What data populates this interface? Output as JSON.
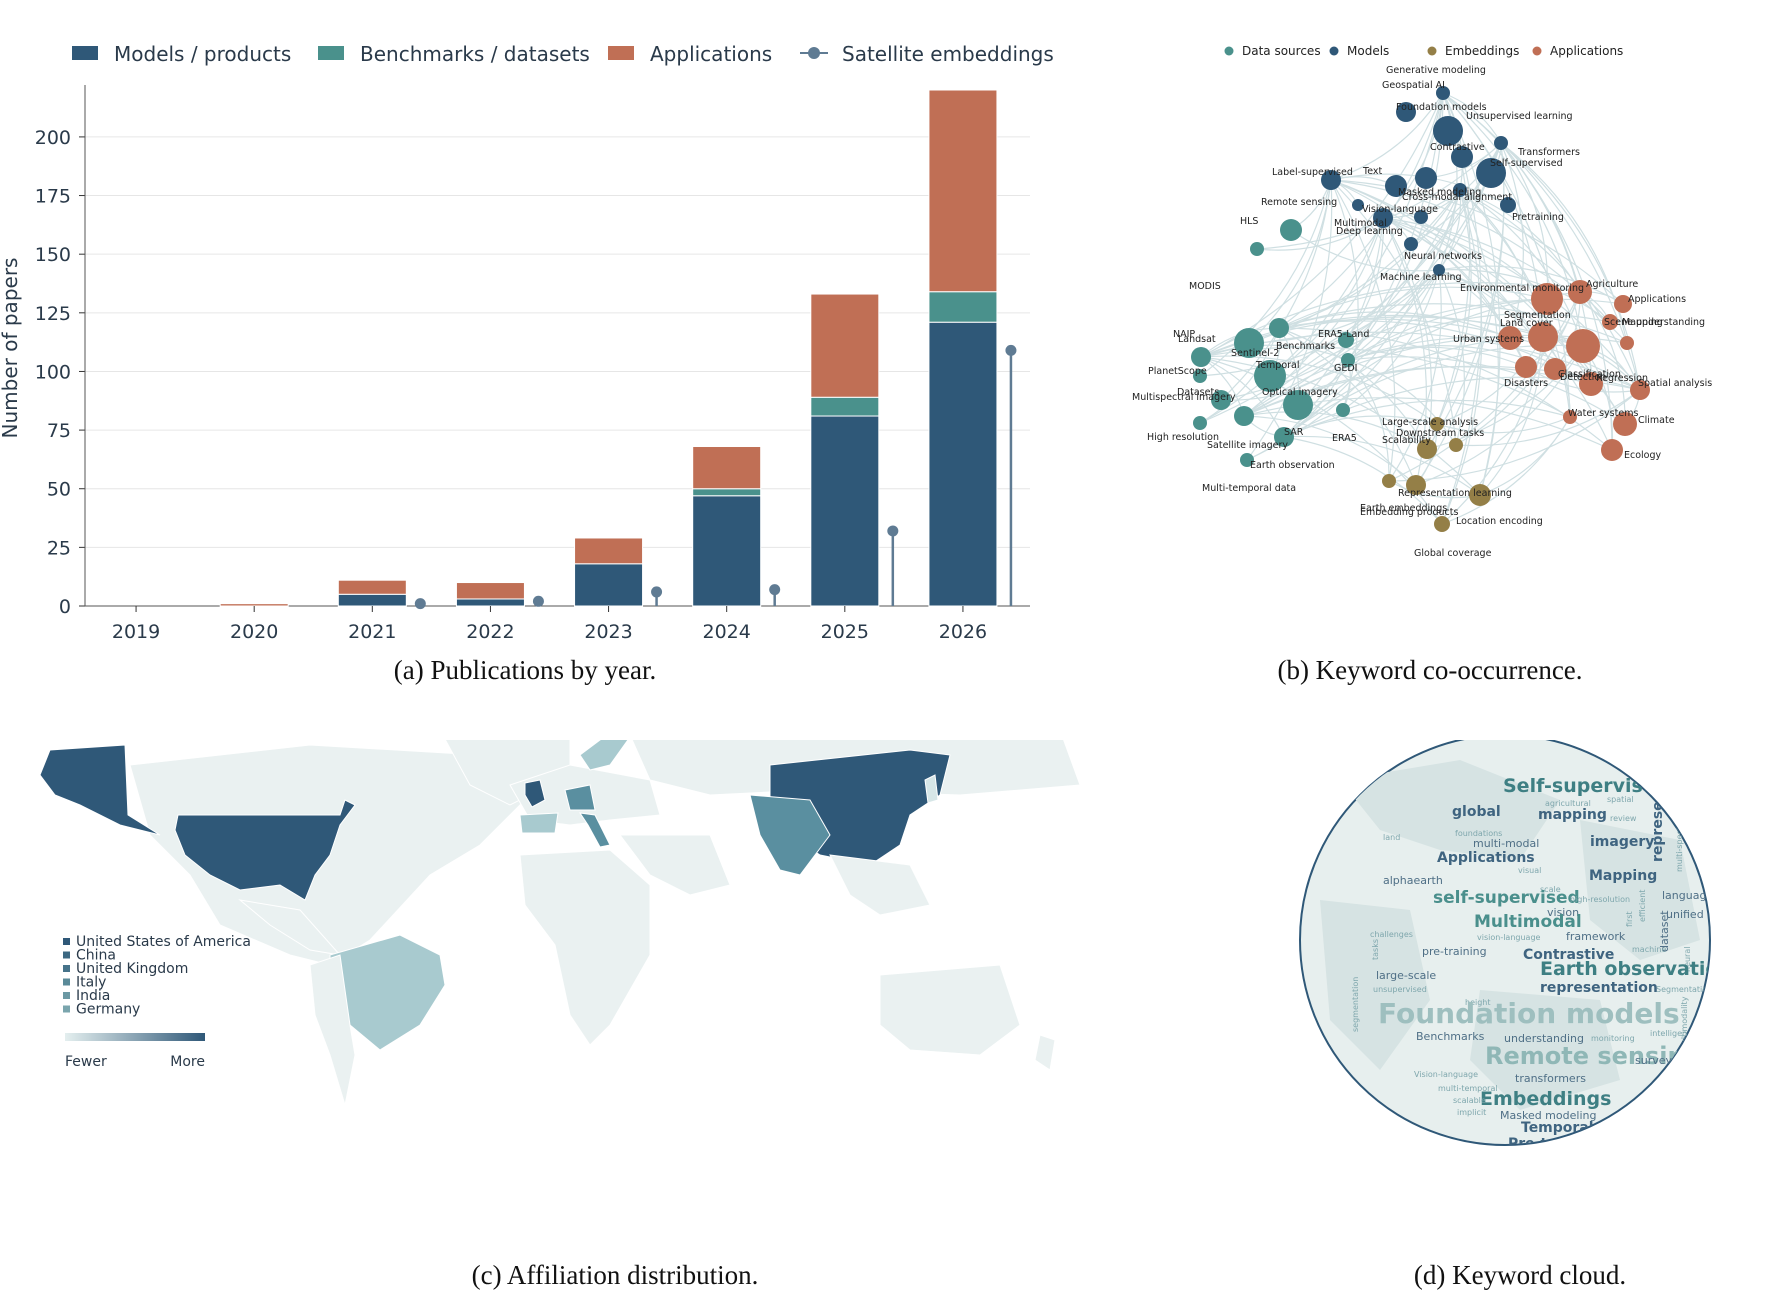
{
  "panels": {
    "a": {
      "caption": "(a) Publications by year."
    },
    "b": {
      "caption": "(b) Keyword co-occurrence."
    },
    "c": {
      "caption": "(c) Affiliation distribution."
    },
    "d": {
      "caption": "(d) Keyword cloud."
    }
  },
  "colors": {
    "models": "#2f5878",
    "benchmarks": "#4a918c",
    "applications": "#c06f55",
    "embeddings": "#5f7b93",
    "data_sources": "#4a918c",
    "network_embeddings": "#947f47",
    "grid": "#e6e6e6",
    "map_base": "#eaf1f1"
  },
  "chart_data": [
    {
      "type": "bar",
      "stacked": true,
      "title": "",
      "ylabel": "Number of papers",
      "xlabel": "",
      "ylim": [
        0,
        220
      ],
      "yticks": [
        "0",
        "25",
        "50",
        "75",
        "100",
        "125",
        "150",
        "175",
        "200"
      ],
      "categories": [
        "2019",
        "2020",
        "2021",
        "2022",
        "2023",
        "2024",
        "2025",
        "2026"
      ],
      "series": [
        {
          "name": "Models / products",
          "values": [
            0,
            0,
            5,
            3,
            18,
            47,
            81,
            121
          ]
        },
        {
          "name": "Benchmarks / datasets",
          "values": [
            0,
            0,
            0,
            0,
            0,
            3,
            8,
            13
          ]
        },
        {
          "name": "Applications",
          "values": [
            0,
            1,
            6,
            7,
            11,
            18,
            44,
            86
          ]
        }
      ],
      "lollipop_series": {
        "name": "Satellite embeddings",
        "values": [
          0,
          0,
          1,
          2,
          6,
          7,
          32,
          109
        ]
      },
      "legend_position": "top",
      "grid": "horizontal"
    },
    {
      "type": "network",
      "legend": [
        "Data sources",
        "Models",
        "Embeddings",
        "Applications"
      ],
      "nodes": [
        {
          "label": "Generative modeling",
          "group": "Models",
          "size": 0
        },
        {
          "label": "Geospatial AI",
          "group": "Models",
          "size": 1
        },
        {
          "label": "Foundation models",
          "group": "Models",
          "size": 2
        },
        {
          "label": "Unsupervised learning",
          "group": "Models",
          "size": 3
        },
        {
          "label": "Transformers",
          "group": "Models",
          "size": 1
        },
        {
          "label": "Contrastive",
          "group": "Models",
          "size": 2
        },
        {
          "label": "Self-supervised",
          "group": "Models",
          "size": 3
        },
        {
          "label": "Label-supervised",
          "group": "Models",
          "size": 2
        },
        {
          "label": "Text",
          "group": "Models",
          "size": 2
        },
        {
          "label": "Masked modeling",
          "group": "Models",
          "size": 2
        },
        {
          "label": "Cross-modal alignment",
          "group": "Models",
          "size": 1
        },
        {
          "label": "Remote sensing",
          "group": "Models",
          "size": 1
        },
        {
          "label": "Vision-language",
          "group": "Models",
          "size": 1
        },
        {
          "label": "Multimodal",
          "group": "Models",
          "size": 2
        },
        {
          "label": "Deep learning",
          "group": "Models",
          "size": 1
        },
        {
          "label": "Pretraining",
          "group": "Models",
          "size": 1
        },
        {
          "label": "Neural networks",
          "group": "Models",
          "size": 1
        },
        {
          "label": "Machine learning",
          "group": "Models",
          "size": 1
        },
        {
          "label": "HLS",
          "group": "Data sources",
          "size": 2
        },
        {
          "label": "MODIS",
          "group": "Data sources",
          "size": 1
        },
        {
          "label": "NAIP",
          "group": "Data sources",
          "size": 1
        },
        {
          "label": "Landsat",
          "group": "Data sources",
          "size": 2
        },
        {
          "label": "Sentinel-2",
          "group": "Data sources",
          "size": 3
        },
        {
          "label": "ERA5-Land",
          "group": "Data sources",
          "size": 1
        },
        {
          "label": "Benchmarks",
          "group": "Data sources",
          "size": 2
        },
        {
          "label": "PlanetScope",
          "group": "Data sources",
          "size": 1
        },
        {
          "label": "Temporal",
          "group": "Data sources",
          "size": 3
        },
        {
          "label": "GEDI",
          "group": "Data sources",
          "size": 1
        },
        {
          "label": "Datasets",
          "group": "Data sources",
          "size": 2
        },
        {
          "label": "Multispectral imagery",
          "group": "Data sources",
          "size": 1
        },
        {
          "label": "Optical imagery",
          "group": "Data sources",
          "size": 3
        },
        {
          "label": "SAR",
          "group": "Data sources",
          "size": 2
        },
        {
          "label": "ERA5",
          "group": "Data sources",
          "size": 1
        },
        {
          "label": "High resolution",
          "group": "Data sources",
          "size": 1
        },
        {
          "label": "Satellite imagery",
          "group": "Data sources",
          "size": 2
        },
        {
          "label": "Earth observation",
          "group": "Data sources",
          "size": 1
        },
        {
          "label": "Multi-temporal data",
          "group": "Data sources",
          "size": 0
        },
        {
          "label": "Environmental monitoring",
          "group": "Applications",
          "size": 3
        },
        {
          "label": "Agriculture",
          "group": "Applications",
          "size": 2
        },
        {
          "label": "Applications",
          "group": "Applications",
          "size": 1
        },
        {
          "label": "Segmentation",
          "group": "Applications",
          "size": 2
        },
        {
          "label": "Land cover",
          "group": "Applications",
          "size": 3
        },
        {
          "label": "Scene understanding",
          "group": "Applications",
          "size": 1
        },
        {
          "label": "Mapping",
          "group": "Applications",
          "size": 1
        },
        {
          "label": "Urban systems",
          "group": "Applications",
          "size": 3
        },
        {
          "label": "Classification",
          "group": "Applications",
          "size": 2
        },
        {
          "label": "Detection",
          "group": "Applications",
          "size": 2
        },
        {
          "label": "Regression",
          "group": "Applications",
          "size": 2
        },
        {
          "label": "Disasters",
          "group": "Applications",
          "size": 2
        },
        {
          "label": "Spatial analysis",
          "group": "Applications",
          "size": 1
        },
        {
          "label": "Water systems",
          "group": "Applications",
          "size": 1
        },
        {
          "label": "Climate",
          "group": "Applications",
          "size": 2
        },
        {
          "label": "Ecology",
          "group": "Applications",
          "size": 2
        },
        {
          "label": "Large-scale analysis",
          "group": "Embeddings",
          "size": 1
        },
        {
          "label": "Downstream tasks",
          "group": "Embeddings",
          "size": 1
        },
        {
          "label": "Scalability",
          "group": "Embeddings",
          "size": 2
        },
        {
          "label": "Representation learning",
          "group": "Embeddings",
          "size": 2
        },
        {
          "label": "Earth embeddings",
          "group": "Embeddings",
          "size": 1
        },
        {
          "label": "Embedding products",
          "group": "Embeddings",
          "size": 2
        },
        {
          "label": "Location encoding",
          "group": "Embeddings",
          "size": 1
        },
        {
          "label": "Global coverage",
          "group": "Embeddings",
          "size": 0
        }
      ]
    },
    {
      "type": "map",
      "legend": [
        "United States of America",
        "China",
        "United Kingdom",
        "Italy",
        "India",
        "Germany"
      ],
      "scale_low": "Fewer",
      "scale_high": "More"
    },
    {
      "type": "wordcloud",
      "words": [
        {
          "text": "Self-supervised",
          "w": 5
        },
        {
          "text": "spatial",
          "w": 1
        },
        {
          "text": "agricultural",
          "w": 1
        },
        {
          "text": "global",
          "w": 3
        },
        {
          "text": "mapping",
          "w": 3
        },
        {
          "text": "review",
          "w": 1
        },
        {
          "text": "foundations",
          "w": 1
        },
        {
          "text": "land",
          "w": 1
        },
        {
          "text": "multi-modal",
          "w": 2
        },
        {
          "text": "imagery",
          "w": 3
        },
        {
          "text": "representations",
          "w": 3
        },
        {
          "text": "Applications",
          "w": 3
        },
        {
          "text": "multi-spectral",
          "w": 1
        },
        {
          "text": "alphaearth",
          "w": 2
        },
        {
          "text": "visual",
          "w": 1
        },
        {
          "text": "Mapping",
          "w": 3
        },
        {
          "text": "scale",
          "w": 1
        },
        {
          "text": "self-supervised",
          "w": 4
        },
        {
          "text": "high-resolution",
          "w": 1
        },
        {
          "text": "language",
          "w": 2
        },
        {
          "text": "efficient",
          "w": 1
        },
        {
          "text": "first",
          "w": 1
        },
        {
          "text": "vision",
          "w": 2
        },
        {
          "text": "unified",
          "w": 2
        },
        {
          "text": "Multimodal",
          "w": 4
        },
        {
          "text": "challenges",
          "w": 1
        },
        {
          "text": "vision-language",
          "w": 1
        },
        {
          "text": "framework",
          "w": 2
        },
        {
          "text": "dataset",
          "w": 2
        },
        {
          "text": "tasks",
          "w": 1
        },
        {
          "text": "machine",
          "w": 1
        },
        {
          "text": "pre-training",
          "w": 2
        },
        {
          "text": "Contrastive",
          "w": 3
        },
        {
          "text": "neural",
          "w": 1
        },
        {
          "text": "Earth observation",
          "w": 5
        },
        {
          "text": "large-scale",
          "w": 2
        },
        {
          "text": "unsupervised",
          "w": 1
        },
        {
          "text": "representation",
          "w": 3
        },
        {
          "text": "Segmentation",
          "w": 1
        },
        {
          "text": "segmentation",
          "w": 1
        },
        {
          "text": "height",
          "w": 1
        },
        {
          "text": "multimodality",
          "w": 1
        },
        {
          "text": "Foundation models",
          "w": 7
        },
        {
          "text": "Benchmarks",
          "w": 2
        },
        {
          "text": "understanding",
          "w": 2
        },
        {
          "text": "monitoring",
          "w": 1
        },
        {
          "text": "intelligence",
          "w": 1
        },
        {
          "text": "Remote sensing",
          "w": 6
        },
        {
          "text": "survey",
          "w": 2
        },
        {
          "text": "Vision-language",
          "w": 1
        },
        {
          "text": "transformers",
          "w": 2
        },
        {
          "text": "multi-temporal",
          "w": 1
        },
        {
          "text": "Embeddings",
          "w": 5
        },
        {
          "text": "scalable",
          "w": 1
        },
        {
          "text": "Masked modeling",
          "w": 2
        },
        {
          "text": "implicit",
          "w": 1
        },
        {
          "text": "Temporal",
          "w": 3
        },
        {
          "text": "Pre-training",
          "w": 3
        }
      ]
    }
  ]
}
